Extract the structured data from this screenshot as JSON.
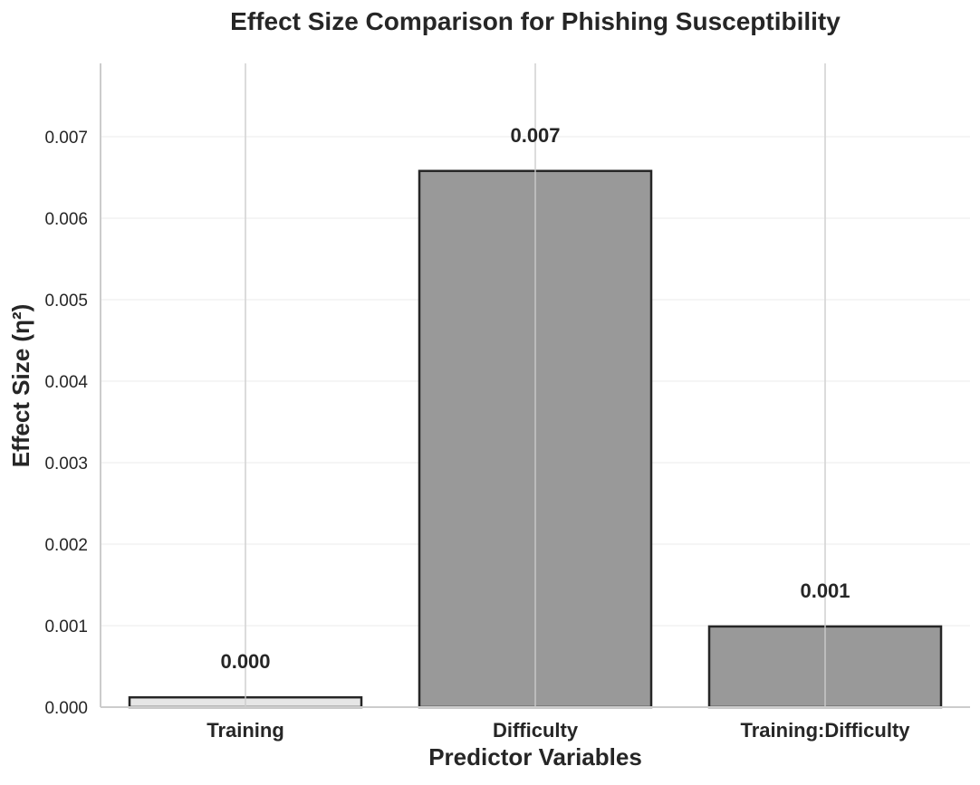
{
  "chart_data": {
    "type": "bar",
    "title": "Effect Size Comparison for Phishing Susceptibility",
    "xlabel": "Predictor Variables",
    "ylabel": "Effect Size (η²)",
    "categories": [
      "Training",
      "Difficulty",
      "Training:Difficulty"
    ],
    "values": [
      0.00012,
      0.00658,
      0.00099
    ],
    "value_labels": [
      "0.000",
      "0.007",
      "0.001"
    ],
    "bar_colors": [
      "#e6e6e6",
      "#999999",
      "#999999"
    ],
    "ylim": [
      0,
      0.0079
    ],
    "yticks": [
      0.0,
      0.001,
      0.002,
      0.003,
      0.004,
      0.005,
      0.006,
      0.007
    ],
    "ytick_labels": [
      "0.000",
      "0.001",
      "0.002",
      "0.003",
      "0.004",
      "0.005",
      "0.006",
      "0.007"
    ],
    "grid": true,
    "legend": "none"
  }
}
